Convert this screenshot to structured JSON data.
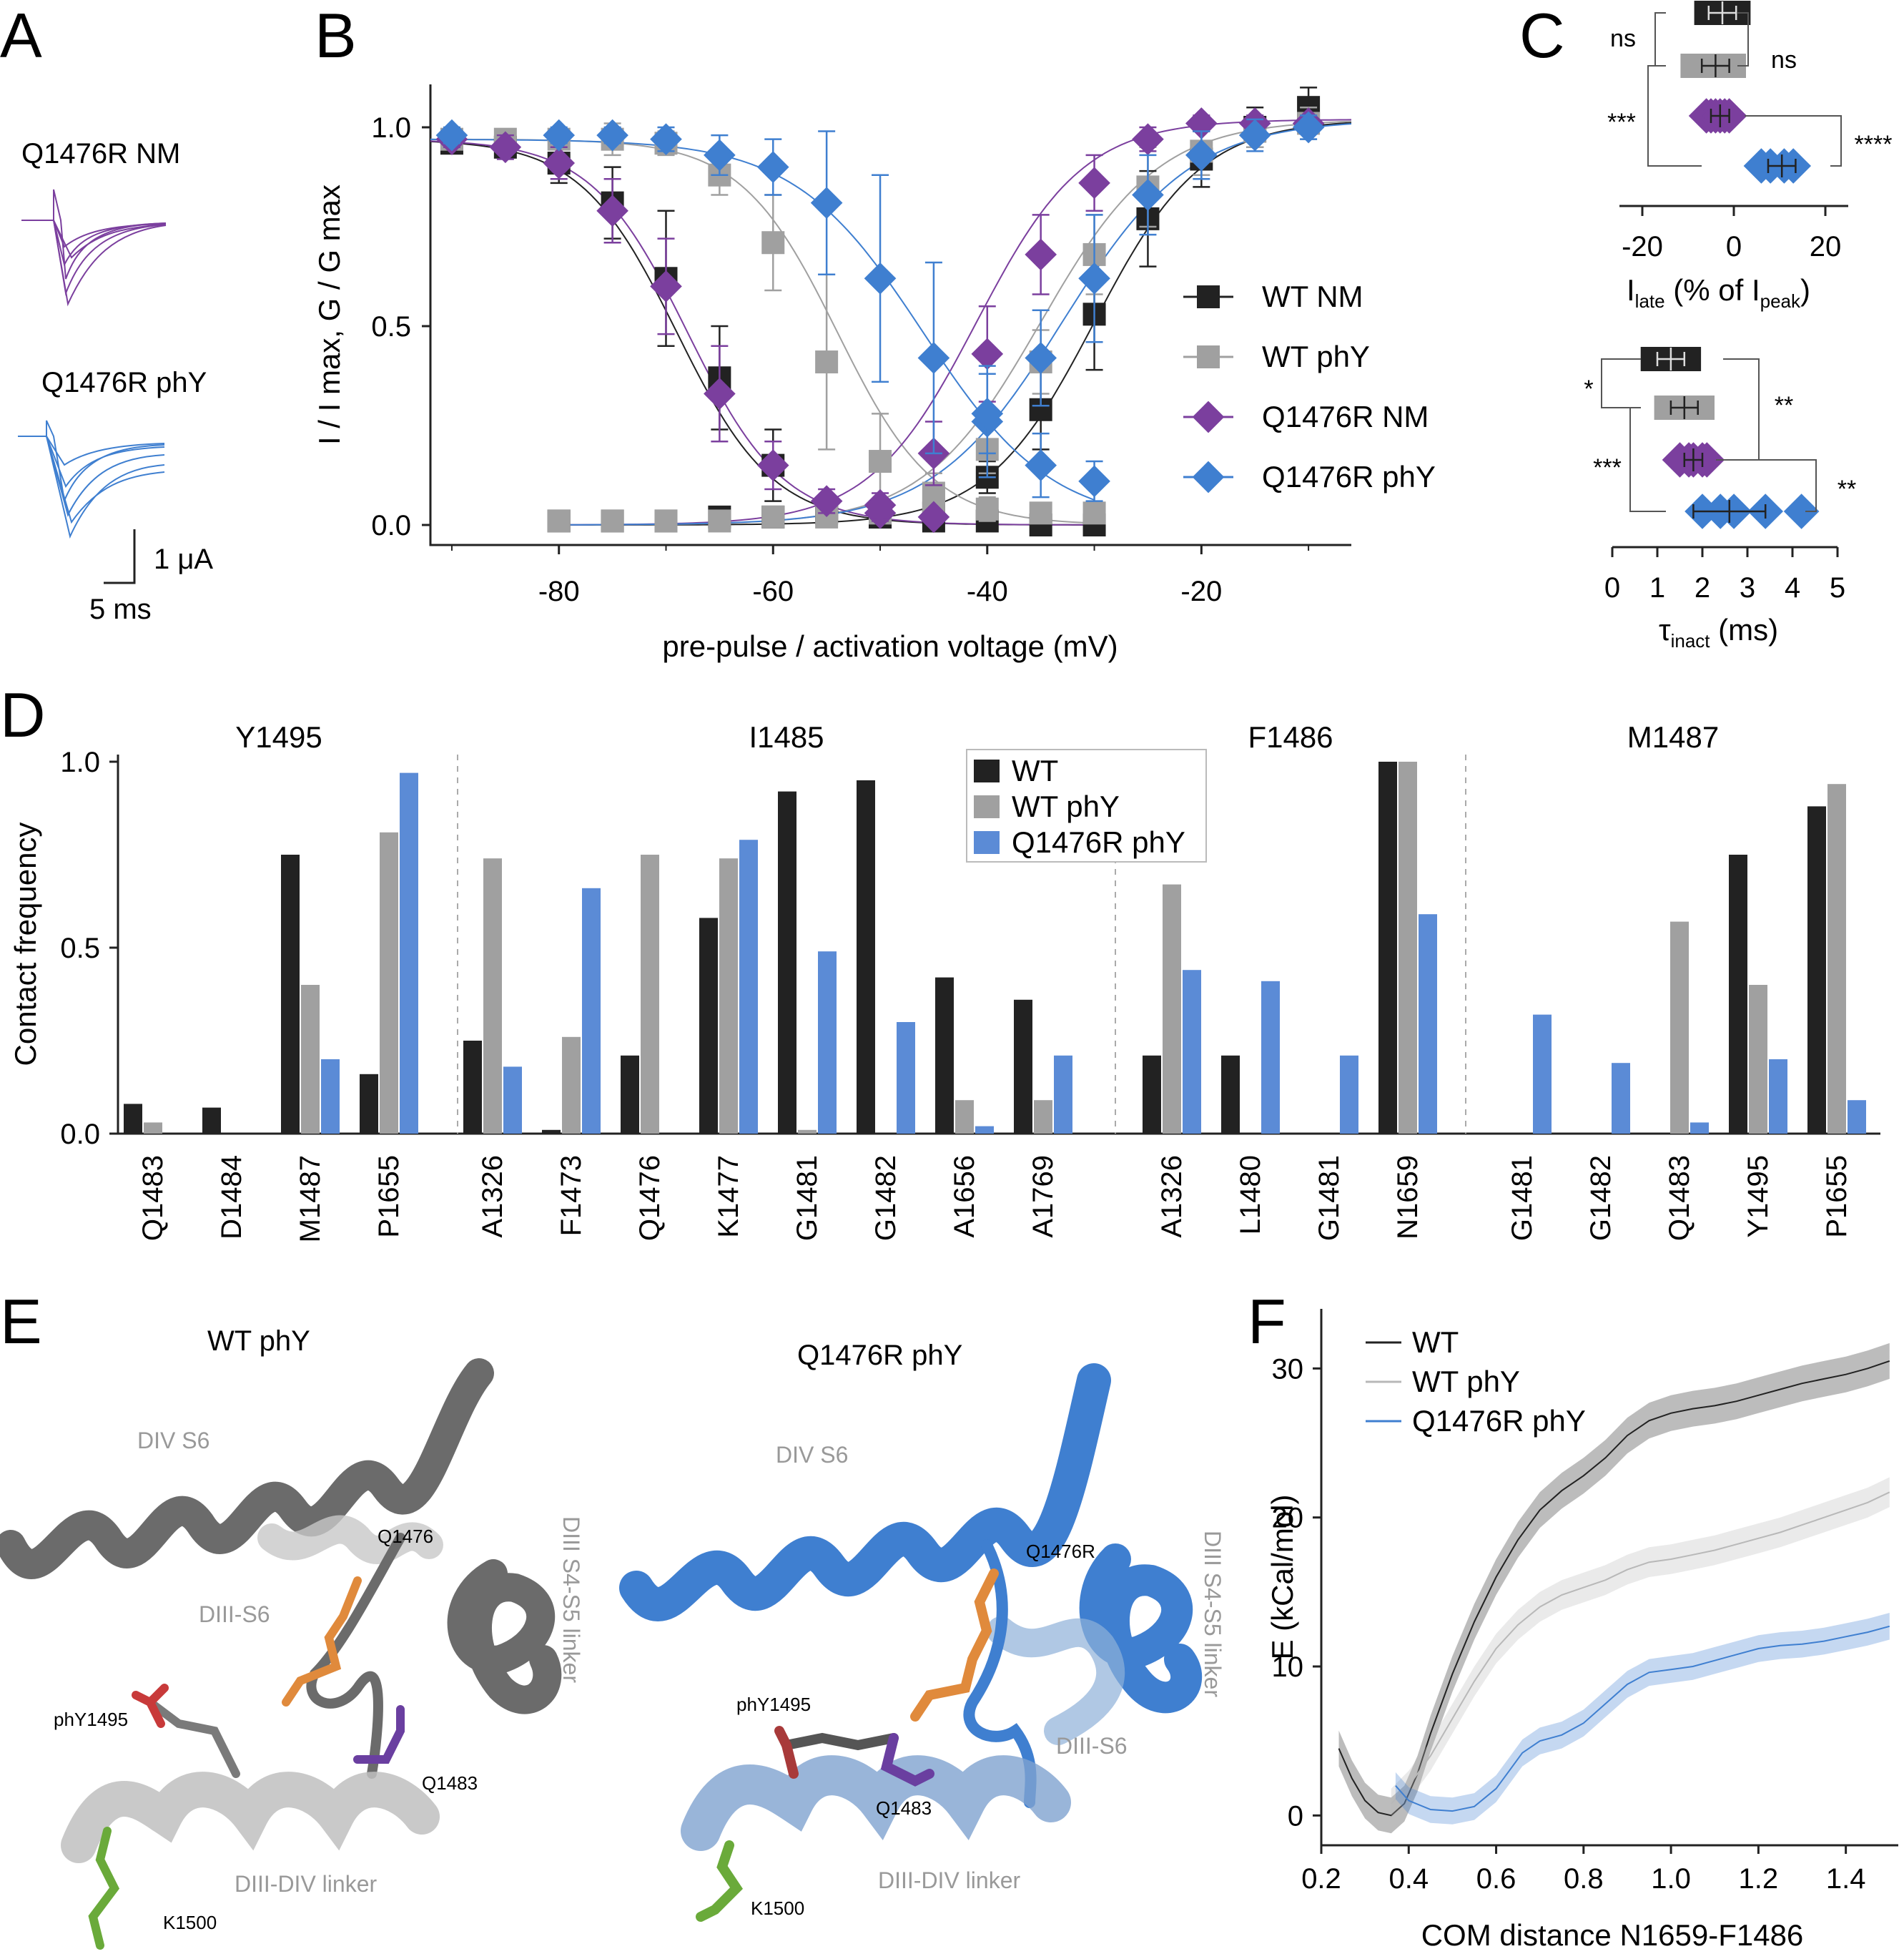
{
  "panel_letters": [
    "A",
    "B",
    "C",
    "D",
    "E",
    "F"
  ],
  "colors": {
    "black": "#222222",
    "gray": "#a0a0a0",
    "purple": "#7b3f9e",
    "blue": "#3f7fd0",
    "blue_bar": "#5b8bd6",
    "orange": "#e08a3c",
    "red": "#c83a3a",
    "green": "#6aaa3a",
    "violet": "#6a3fa0"
  },
  "panel_a": {
    "trace1_label": "Q1476R NM",
    "trace2_label": "Q1476R phY",
    "scale_current": "1 μA",
    "scale_time": "5 ms"
  },
  "chart_data": [
    {
      "panel": "B",
      "type": "scatter",
      "xlabel": "pre-pulse / activation voltage (mV)",
      "ylabel": "I / I max, G / G max",
      "xlim": [
        -92,
        -6
      ],
      "ylim": [
        0,
        1.1
      ],
      "xticks": [
        "-80",
        "-60",
        "-40",
        "-20"
      ],
      "yticks": [
        "0.0",
        "0.5",
        "1.0"
      ],
      "legend_position": "right",
      "series": [
        {
          "name": "WT NM",
          "color": "#222222",
          "marker": "square",
          "inactivation": {
            "x": [
              -90,
              -85,
              -80,
              -75,
              -70,
              -65,
              -60,
              -55,
              -50,
              -45,
              -40,
              -35,
              -30
            ],
            "y": [
              0.96,
              0.95,
              0.91,
              0.81,
              0.62,
              0.37,
              0.15,
              0.04,
              0.02,
              0.01,
              0.01,
              0.0,
              0.0
            ],
            "err": [
              0.02,
              0.02,
              0.05,
              0.09,
              0.17,
              0.13,
              0.09,
              0.03,
              0.02,
              0.01,
              0.01,
              0.01,
              0.01
            ]
          },
          "activation": {
            "x": [
              -80,
              -75,
              -70,
              -65,
              -60,
              -55,
              -50,
              -45,
              -40,
              -35,
              -30,
              -25,
              -20,
              -15,
              -10
            ],
            "y": [
              0.01,
              0.01,
              0.01,
              0.02,
              0.02,
              0.03,
              0.02,
              0.03,
              0.12,
              0.29,
              0.53,
              0.77,
              0.92,
              1.0,
              1.05
            ],
            "err": [
              0.01,
              0.01,
              0.01,
              0.01,
              0.01,
              0.02,
              0.02,
              0.02,
              0.04,
              0.1,
              0.14,
              0.12,
              0.07,
              0.05,
              0.05
            ]
          }
        },
        {
          "name": "WT phY",
          "color": "#a0a0a0",
          "marker": "square",
          "inactivation": {
            "x": [
              -90,
              -85,
              -80,
              -75,
              -70,
              -65,
              -60,
              -55,
              -50,
              -45,
              -40,
              -35,
              -30
            ],
            "y": [
              0.97,
              0.97,
              0.97,
              0.97,
              0.96,
              0.88,
              0.71,
              0.41,
              0.16,
              0.08,
              0.04,
              0.03,
              0.03
            ],
            "err": [
              0.02,
              0.02,
              0.02,
              0.04,
              0.03,
              0.05,
              0.12,
              0.22,
              0.12,
              0.05,
              0.03,
              0.02,
              0.02
            ]
          },
          "activation": {
            "x": [
              -80,
              -75,
              -70,
              -65,
              -60,
              -55,
              -50,
              -45,
              -40,
              -35,
              -30,
              -25,
              -20,
              -15,
              -10
            ],
            "y": [
              0.01,
              0.01,
              0.01,
              0.01,
              0.02,
              0.02,
              0.03,
              0.06,
              0.19,
              0.41,
              0.68,
              0.85,
              0.94,
              0.99,
              1.01
            ],
            "err": [
              0.01,
              0.01,
              0.01,
              0.01,
              0.01,
              0.02,
              0.02,
              0.03,
              0.06,
              0.08,
              0.1,
              0.1,
              0.06,
              0.04,
              0.04
            ]
          }
        },
        {
          "name": "Q1476R NM",
          "color": "#7b3f9e",
          "marker": "diamond",
          "inactivation": {
            "x": [
              -90,
              -85,
              -80,
              -75,
              -70,
              -65,
              -60,
              -55,
              -50,
              -45
            ],
            "y": [
              0.97,
              0.95,
              0.91,
              0.79,
              0.6,
              0.33,
              0.15,
              0.06,
              0.03,
              0.02
            ],
            "err": [
              0.02,
              0.03,
              0.04,
              0.08,
              0.12,
              0.12,
              0.06,
              0.03,
              0.02,
              0.01
            ]
          },
          "activation": {
            "x": [
              -50,
              -45,
              -40,
              -35,
              -30,
              -25,
              -20,
              -15,
              -10
            ],
            "y": [
              0.05,
              0.18,
              0.43,
              0.68,
              0.86,
              0.97,
              1.01,
              1.01,
              1.01
            ],
            "err": [
              0.03,
              0.08,
              0.12,
              0.1,
              0.07,
              0.03,
              0.02,
              0.02,
              0.02
            ]
          }
        },
        {
          "name": "Q1476R phY",
          "color": "#3f7fd0",
          "marker": "diamond",
          "inactivation": {
            "x": [
              -90,
              -80,
              -75,
              -70,
              -65,
              -60,
              -55,
              -50,
              -45,
              -40,
              -35,
              -30
            ],
            "y": [
              0.98,
              0.98,
              0.98,
              0.97,
              0.93,
              0.9,
              0.81,
              0.62,
              0.42,
              0.26,
              0.15,
              0.11
            ],
            "err": [
              0.02,
              0.02,
              0.02,
              0.03,
              0.05,
              0.07,
              0.18,
              0.26,
              0.24,
              0.14,
              0.08,
              0.05
            ]
          },
          "activation": {
            "x": [
              -40,
              -35,
              -30,
              -25,
              -20,
              -15,
              -10
            ],
            "y": [
              0.28,
              0.42,
              0.62,
              0.83,
              0.93,
              0.98,
              1.0
            ],
            "err": [
              0.1,
              0.12,
              0.16,
              0.1,
              0.06,
              0.04,
              0.03
            ]
          }
        }
      ]
    },
    {
      "panel": "C-top",
      "type": "scatter",
      "xlabel_main": "I",
      "xlabel_sub1": "late",
      "xlabel_mid": " (% of I",
      "xlabel_sub2": "peak",
      "xlabel_end": ")",
      "xlim": [
        -25,
        25
      ],
      "xticks": [
        "-20",
        "0",
        "20"
      ],
      "groups": [
        {
          "name": "WT NM",
          "color": "#222222",
          "points": [
            -6,
            -4,
            -3,
            -2,
            0,
            1
          ],
          "mean": -2.5,
          "err": 3
        },
        {
          "name": "WT phY",
          "color": "#a0a0a0",
          "points": [
            -9,
            -7,
            -5,
            -4,
            -2,
            0
          ],
          "mean": -4,
          "err": 3
        },
        {
          "name": "Q1476R NM",
          "color": "#7b3f9e",
          "points": [
            -6,
            -5,
            -4,
            -3,
            -2,
            -1
          ],
          "mean": -3,
          "err": 2
        },
        {
          "name": "Q1476R phY",
          "color": "#3f7fd0",
          "points": [
            6,
            8,
            11,
            13
          ],
          "mean": 10.5,
          "err": 3
        }
      ],
      "significance": [
        "ns",
        "ns",
        "***",
        "****"
      ]
    },
    {
      "panel": "C-bottom",
      "type": "scatter",
      "xlabel_main": "τ",
      "xlabel_sub": "inact",
      "xlabel_end": " (ms)",
      "xlim": [
        0,
        5
      ],
      "xticks": [
        "0",
        "1",
        "2",
        "3",
        "4",
        "5"
      ],
      "groups": [
        {
          "name": "WT NM",
          "color": "#222222",
          "points": [
            0.9,
            1.1,
            1.3,
            1.5,
            1.7
          ],
          "mean": 1.3,
          "err": 0.3
        },
        {
          "name": "WT phY",
          "color": "#a0a0a0",
          "points": [
            1.2,
            1.4,
            1.6,
            1.8,
            2.0
          ],
          "mean": 1.6,
          "err": 0.3
        },
        {
          "name": "Q1476R NM",
          "color": "#7b3f9e",
          "points": [
            1.5,
            1.7,
            1.8,
            2.0,
            2.1
          ],
          "mean": 1.8,
          "err": 0.2
        },
        {
          "name": "Q1476R phY",
          "color": "#3f7fd0",
          "points": [
            2.0,
            2.4,
            2.7,
            3.4,
            4.2
          ],
          "mean": 2.6,
          "err": 0.8
        }
      ],
      "significance": [
        "*",
        "**",
        "***",
        "**"
      ]
    },
    {
      "panel": "D",
      "type": "bar",
      "ylabel": "Contact frequency",
      "ylim": [
        0,
        1.0
      ],
      "yticks": [
        "0.0",
        "0.5",
        "1.0"
      ],
      "series_names": [
        "WT",
        "WT phY",
        "Q1476R phY"
      ],
      "legend_position": "top-center",
      "groups": [
        {
          "title": "Y1495",
          "categories": [
            "Q1483",
            "D1484",
            "M1487",
            "P1655"
          ],
          "values": [
            [
              0.08,
              0.03,
              0.0
            ],
            [
              0.07,
              0.0,
              0.0
            ],
            [
              0.75,
              0.4,
              0.2
            ],
            [
              0.16,
              0.81,
              0.97
            ]
          ]
        },
        {
          "title": "I1485",
          "categories": [
            "A1326",
            "F1473",
            "Q1476",
            "K1477",
            "G1481",
            "G1482",
            "A1656",
            "A1769"
          ],
          "values": [
            [
              0.25,
              0.74,
              0.18
            ],
            [
              0.01,
              0.26,
              0.66
            ],
            [
              0.21,
              0.75,
              0.0
            ],
            [
              0.58,
              0.74,
              0.79
            ],
            [
              0.92,
              0.01,
              0.49
            ],
            [
              0.95,
              0.0,
              0.3
            ],
            [
              0.42,
              0.09,
              0.02
            ],
            [
              0.36,
              0.09,
              0.21
            ]
          ]
        },
        {
          "title": "F1486",
          "categories": [
            "A1326",
            "L1480",
            "G1481",
            "N1659"
          ],
          "values": [
            [
              0.21,
              0.67,
              0.44
            ],
            [
              0.21,
              0.0,
              0.41
            ],
            [
              0.0,
              0.0,
              0.21
            ],
            [
              1.0,
              1.0,
              0.59
            ]
          ]
        },
        {
          "title": "M1487",
          "categories": [
            "G1481",
            "G1482",
            "Q1483",
            "Y1495",
            "P1655"
          ],
          "values": [
            [
              0.0,
              0.0,
              0.32
            ],
            [
              0.0,
              0.0,
              0.19
            ],
            [
              0.0,
              0.57,
              0.03
            ],
            [
              0.75,
              0.4,
              0.2
            ],
            [
              0.88,
              0.94,
              0.09
            ]
          ]
        }
      ]
    },
    {
      "panel": "F",
      "type": "line",
      "xlabel": "COM distance N1659-F1486",
      "ylabel": "E (kCal/mol)",
      "xlim": [
        0.2,
        1.52
      ],
      "ylim": [
        -2,
        34
      ],
      "xticks": [
        "0.2",
        "0.4",
        "0.6",
        "0.8",
        "1.0",
        "1.2",
        "1.4"
      ],
      "yticks": [
        "0",
        "10",
        "20",
        "30"
      ],
      "legend_position": "top-left",
      "series": [
        {
          "name": "WT",
          "color": "#222222",
          "x": [
            0.24,
            0.27,
            0.3,
            0.33,
            0.36,
            0.39,
            0.42,
            0.45,
            0.5,
            0.55,
            0.6,
            0.65,
            0.7,
            0.75,
            0.8,
            0.85,
            0.9,
            0.95,
            1.0,
            1.05,
            1.1,
            1.15,
            1.2,
            1.25,
            1.3,
            1.35,
            1.4,
            1.45,
            1.5
          ],
          "y": [
            4.5,
            2.5,
            1.0,
            0.2,
            0.0,
            0.8,
            2.8,
            5.5,
            9.5,
            13.0,
            16.0,
            18.5,
            20.5,
            21.8,
            22.8,
            24.0,
            25.5,
            26.5,
            27.0,
            27.3,
            27.5,
            27.8,
            28.2,
            28.6,
            29.0,
            29.3,
            29.6,
            30.0,
            30.5
          ],
          "band": 1.2
        },
        {
          "name": "WT phY",
          "color": "#b8b8b8",
          "x": [
            0.36,
            0.4,
            0.45,
            0.5,
            0.55,
            0.6,
            0.65,
            0.7,
            0.75,
            0.8,
            0.85,
            0.9,
            0.95,
            1.0,
            1.05,
            1.1,
            1.15,
            1.2,
            1.25,
            1.3,
            1.35,
            1.4,
            1.45,
            1.5
          ],
          "y": [
            0.8,
            2.0,
            4.0,
            6.5,
            9.0,
            11.2,
            12.8,
            14.0,
            14.8,
            15.3,
            15.8,
            16.5,
            17.0,
            17.2,
            17.5,
            17.8,
            18.2,
            18.6,
            19.0,
            19.5,
            20.0,
            20.5,
            21.0,
            21.7
          ],
          "band": 1.0
        },
        {
          "name": "Q1476R phY",
          "color": "#3f7fd0",
          "x": [
            0.37,
            0.4,
            0.45,
            0.5,
            0.55,
            0.6,
            0.63,
            0.66,
            0.7,
            0.75,
            0.8,
            0.85,
            0.9,
            0.95,
            1.0,
            1.05,
            1.1,
            1.15,
            1.2,
            1.25,
            1.3,
            1.35,
            1.4,
            1.45,
            1.5
          ],
          "y": [
            2.0,
            1.0,
            0.4,
            0.3,
            0.6,
            1.8,
            3.0,
            4.2,
            5.0,
            5.4,
            6.2,
            7.5,
            8.8,
            9.6,
            9.8,
            10.0,
            10.4,
            10.8,
            11.2,
            11.4,
            11.5,
            11.7,
            12.0,
            12.3,
            12.7
          ],
          "band": 0.9
        }
      ]
    }
  ],
  "panel_e": {
    "left_title": "WT phY",
    "right_title": "Q1476R phY",
    "left_labels": {
      "div_s6": "DIV S6",
      "diii_s6": "DIII-S6",
      "q1476": "Q1476",
      "diii_linker": "DIII S4-S5 linker",
      "phy1495": "phY1495",
      "q1483": "Q1483",
      "diii_div_linker": "DIII-DIV linker",
      "k1500": "K1500"
    },
    "right_labels": {
      "div_s6": "DIV S6",
      "q1476r": "Q1476R",
      "diii_linker": "DIII S4-S5 linker",
      "diii_s6": "DIII-S6",
      "phy1495": "phY1495",
      "q1483": "Q1483",
      "diii_div_linker": "DIII-DIV linker",
      "k1500": "K1500"
    }
  }
}
